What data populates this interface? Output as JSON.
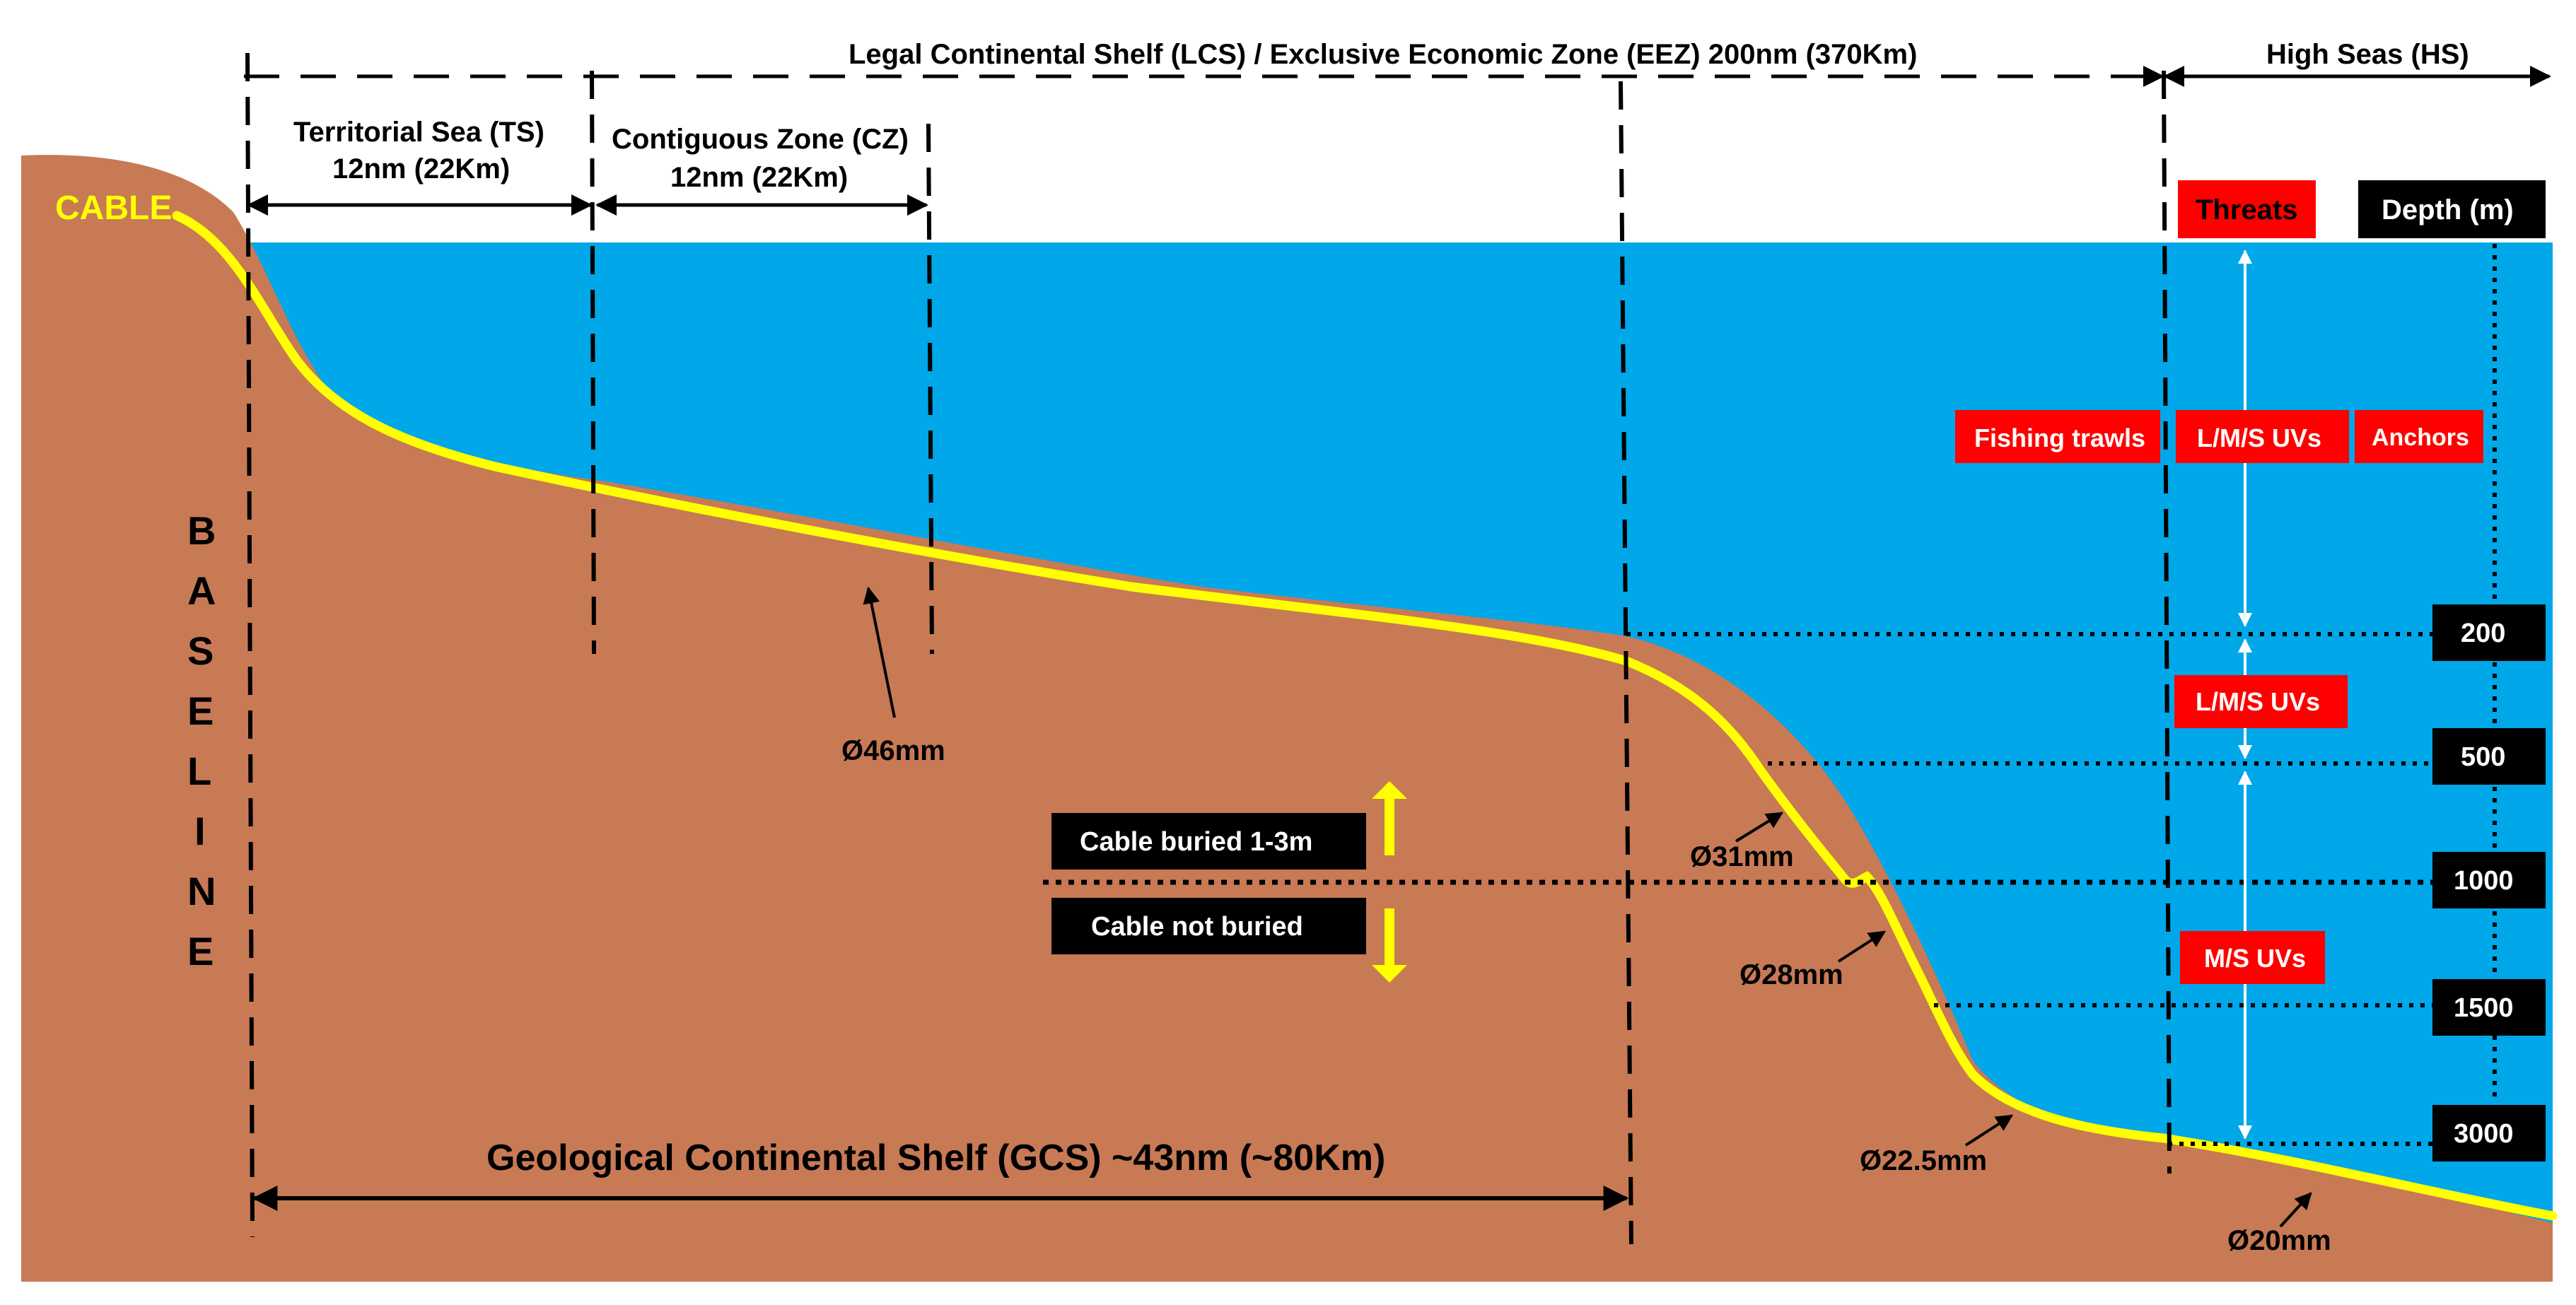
{
  "zones": {
    "lcs_eez": "Legal Continental Shelf (LCS) / Exclusive Economic Zone (EEZ) 200nm (370Km)",
    "high_seas": "High Seas (HS)",
    "ts_line1": "Territorial Sea (TS)",
    "ts_line2": "12nm (22Km)",
    "cz_line1": "Contiguous Zone (CZ)",
    "cz_line2": "12nm (22Km)",
    "gcs": "Geological  Continental  Shelf  (GCS)  ~43nm  (~80Km)"
  },
  "cable_label": "CABLE",
  "baseline_letters": [
    "B",
    "A",
    "S",
    "E",
    "L",
    "I",
    "N",
    "E"
  ],
  "threats": {
    "header": "Threats",
    "fishing": "Fishing trawls",
    "lms1": "L/M/S UVs",
    "anchors": "Anchors",
    "lms2": "L/M/S UVs",
    "ms": "M/S UVs"
  },
  "depth": {
    "header": "Depth (m)",
    "values": [
      "200",
      "500",
      "1000",
      "1500",
      "3000"
    ]
  },
  "diameters": [
    "Ø46mm",
    "Ø31mm",
    "Ø28mm",
    "Ø22.5mm",
    "Ø20mm"
  ],
  "burial": {
    "buried": "Cable buried 1-3m",
    "not_buried": "Cable not buried"
  },
  "colors": {
    "sea": "#00a7e9",
    "seabed": "#c87a55",
    "cable": "#ffff00",
    "threat_box": "#ff0000",
    "depth_box": "#000000"
  }
}
